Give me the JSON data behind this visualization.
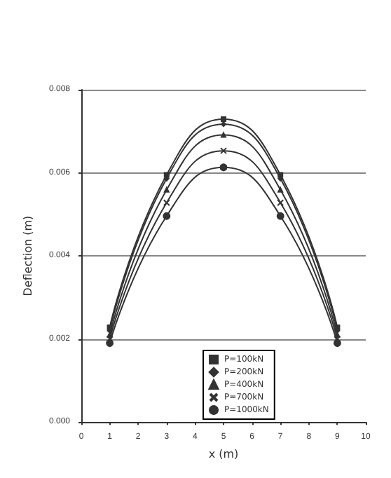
{
  "chart_data": {
    "type": "line",
    "xlabel": "x (m)",
    "ylabel": "Deflection (m)",
    "x": [
      1,
      3,
      5,
      7,
      9
    ],
    "xlim": [
      0,
      10
    ],
    "xticks": [
      0,
      1,
      2,
      3,
      4,
      5,
      6,
      7,
      8,
      9,
      10
    ],
    "ylim": [
      0,
      0.008
    ],
    "yticks": [
      {
        "value": 0,
        "label": "0.000"
      },
      {
        "value": 0.002,
        "label": "0.002"
      },
      {
        "value": 0.004,
        "label": "0.004"
      },
      {
        "value": 0.006,
        "label": "0.006"
      },
      {
        "value": 0.008,
        "label": "0.008"
      }
    ],
    "grid": "y",
    "legend": "bottom",
    "line_style": "solid",
    "series": [
      {
        "name": "P=100kN",
        "color": "#333333",
        "marker": "square",
        "values": [
          0.00228,
          0.00595,
          0.00729,
          0.00595,
          0.00228
        ]
      },
      {
        "name": "P=200kN",
        "color": "#333333",
        "marker": "diamond",
        "values": [
          0.0022,
          0.00586,
          0.00717,
          0.00586,
          0.0022
        ]
      },
      {
        "name": "P=400kN",
        "color": "#333333",
        "marker": "triangle",
        "values": [
          0.0021,
          0.00559,
          0.00691,
          0.00559,
          0.0021
        ]
      },
      {
        "name": "P=700kN",
        "color": "#333333",
        "marker": "cross",
        "values": [
          0.002,
          0.00528,
          0.00653,
          0.00528,
          0.002
        ]
      },
      {
        "name": "P=1000kN",
        "color": "#333333",
        "marker": "circle",
        "values": [
          0.0019,
          0.00496,
          0.00613,
          0.00496,
          0.0019
        ]
      }
    ]
  }
}
